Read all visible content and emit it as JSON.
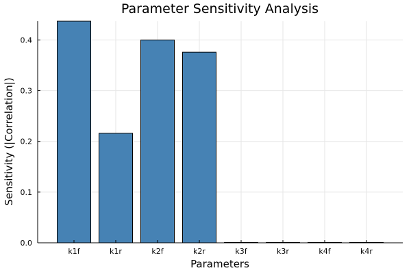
{
  "chart_data": {
    "type": "bar",
    "title": "Parameter Sensitivity Analysis",
    "xlabel": "Parameters",
    "ylabel": "Sensitivity (|Correlation|)",
    "categories": [
      "k1f",
      "k1r",
      "k2f",
      "k2r",
      "k3f",
      "k3r",
      "k4f",
      "k4r"
    ],
    "values": [
      0.437,
      0.216,
      0.4,
      0.376,
      0.0,
      0.0,
      0.0,
      0.0
    ],
    "ylim": [
      0,
      0.437
    ],
    "yticks": [
      0.0,
      0.1,
      0.2,
      0.3,
      0.4
    ],
    "ytick_labels": [
      "0.0",
      "0.1",
      "0.2",
      "0.3",
      "0.4"
    ],
    "grid": true,
    "legend": false,
    "bar_color": "#4682b4",
    "edge_color": "#000000"
  }
}
